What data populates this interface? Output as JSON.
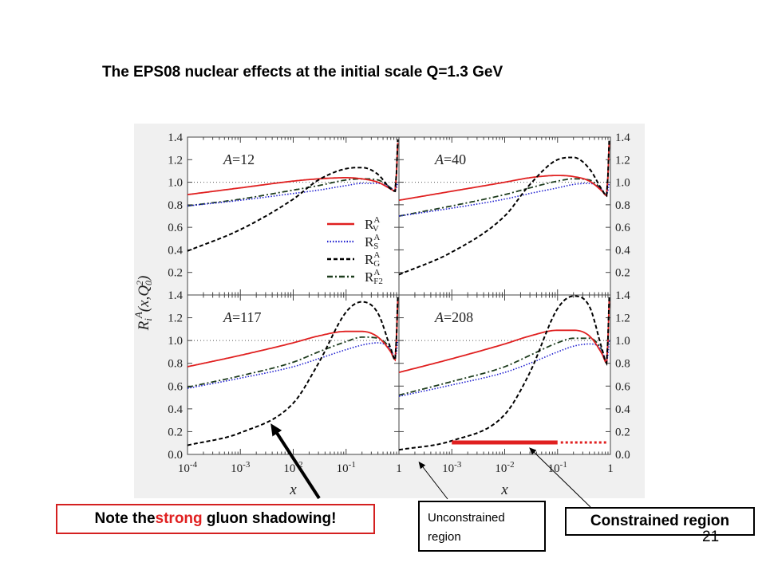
{
  "slide_title": "The EPS08 nuclear effects at the initial scale Q=1.3 GeV",
  "note": {
    "before": "Note the ",
    "highlight": "strong",
    "after": " gluon shadowing!"
  },
  "unconstrained": {
    "line1": "Unconstrained",
    "line2": "region"
  },
  "constrained_label": "Constrained region",
  "page_number": "21",
  "colors": {
    "valence": "#e02020",
    "sea": "#2020d0",
    "gluon": "#000000",
    "f2": "#1e3d1e",
    "constrained_bar": "#e02020"
  },
  "chart_data": {
    "type": "line",
    "ylabel": "R_i^A(x,Q_0^2)",
    "xlabel": "x",
    "x_scale": "log",
    "xlim": [
      0.0001,
      1
    ],
    "ylim": [
      0.0,
      1.4
    ],
    "y_ticks": [
      "0.0",
      "0.2",
      "0.4",
      "0.6",
      "0.8",
      "1.0",
      "1.2",
      "1.4"
    ],
    "x_ticks": [
      {
        "base": "10",
        "exp": "-4"
      },
      {
        "base": "10",
        "exp": "-3"
      },
      {
        "base": "10",
        "exp": "-2"
      },
      {
        "base": "10",
        "exp": "-1"
      },
      {
        "base": "1",
        "exp": ""
      }
    ],
    "legend": [
      {
        "key": "valence",
        "base": "R",
        "sup": "A",
        "sub": "V",
        "style": "solid"
      },
      {
        "key": "sea",
        "base": "R",
        "sup": "A",
        "sub": "S",
        "style": "dotted"
      },
      {
        "key": "gluon",
        "base": "R",
        "sup": "A",
        "sub": "G",
        "style": "dashed"
      },
      {
        "key": "f2",
        "base": "R",
        "sup": "A",
        "sub": "F2",
        "style": "dashdot"
      }
    ],
    "x": [
      0.0001,
      0.001,
      0.01,
      0.03,
      0.1,
      0.2,
      0.4,
      0.7,
      0.85,
      0.95
    ],
    "panels": [
      {
        "label": "A=12",
        "series": {
          "valence": [
            0.89,
            0.95,
            1.01,
            1.03,
            1.04,
            1.03,
            1.0,
            0.94,
            0.92,
            1.35
          ],
          "sea": [
            0.79,
            0.84,
            0.9,
            0.93,
            0.97,
            0.99,
            0.99,
            0.95,
            0.92,
            1.0
          ],
          "gluon": [
            0.39,
            0.58,
            0.85,
            1.02,
            1.12,
            1.13,
            1.07,
            0.94,
            0.92,
            1.38
          ],
          "f2": [
            0.79,
            0.85,
            0.93,
            0.97,
            1.02,
            1.03,
            1.02,
            0.95,
            0.92,
            1.35
          ]
        }
      },
      {
        "label": "A=40",
        "series": {
          "valence": [
            0.84,
            0.92,
            1.0,
            1.04,
            1.06,
            1.05,
            1.01,
            0.92,
            0.88,
            1.35
          ],
          "sea": [
            0.7,
            0.77,
            0.85,
            0.9,
            0.95,
            0.98,
            0.99,
            0.93,
            0.88,
            1.0
          ],
          "gluon": [
            0.18,
            0.38,
            0.7,
            0.98,
            1.2,
            1.22,
            1.12,
            0.93,
            0.88,
            1.38
          ],
          "f2": [
            0.7,
            0.79,
            0.89,
            0.95,
            1.01,
            1.03,
            1.02,
            0.93,
            0.88,
            1.35
          ]
        }
      },
      {
        "label": "A=117",
        "series": {
          "valence": [
            0.77,
            0.87,
            0.98,
            1.04,
            1.08,
            1.08,
            1.03,
            0.9,
            0.83,
            1.35
          ],
          "sea": [
            0.58,
            0.67,
            0.77,
            0.84,
            0.92,
            0.96,
            0.98,
            0.92,
            0.84,
            1.0
          ],
          "gluon": [
            0.08,
            0.19,
            0.45,
            0.8,
            1.25,
            1.34,
            1.24,
            0.93,
            0.83,
            1.38
          ],
          "f2": [
            0.59,
            0.69,
            0.81,
            0.9,
            0.99,
            1.03,
            1.02,
            0.92,
            0.83,
            1.35
          ]
        }
      },
      {
        "label": "A=208",
        "series": {
          "valence": [
            0.72,
            0.84,
            0.97,
            1.04,
            1.09,
            1.09,
            1.04,
            0.88,
            0.8,
            1.35
          ],
          "sea": [
            0.51,
            0.61,
            0.72,
            0.8,
            0.9,
            0.95,
            0.97,
            0.91,
            0.8,
            1.0
          ],
          "gluon": [
            0.04,
            0.12,
            0.35,
            0.72,
            1.28,
            1.39,
            1.3,
            0.92,
            0.8,
            1.38
          ],
          "f2": [
            0.52,
            0.64,
            0.77,
            0.87,
            0.98,
            1.02,
            1.02,
            0.91,
            0.8,
            1.35
          ]
        }
      }
    ],
    "reference_line": 1.0,
    "constrained_region_x": [
      0.001,
      0.1
    ],
    "extrapolated_region_x": [
      0.1,
      0.7
    ]
  }
}
